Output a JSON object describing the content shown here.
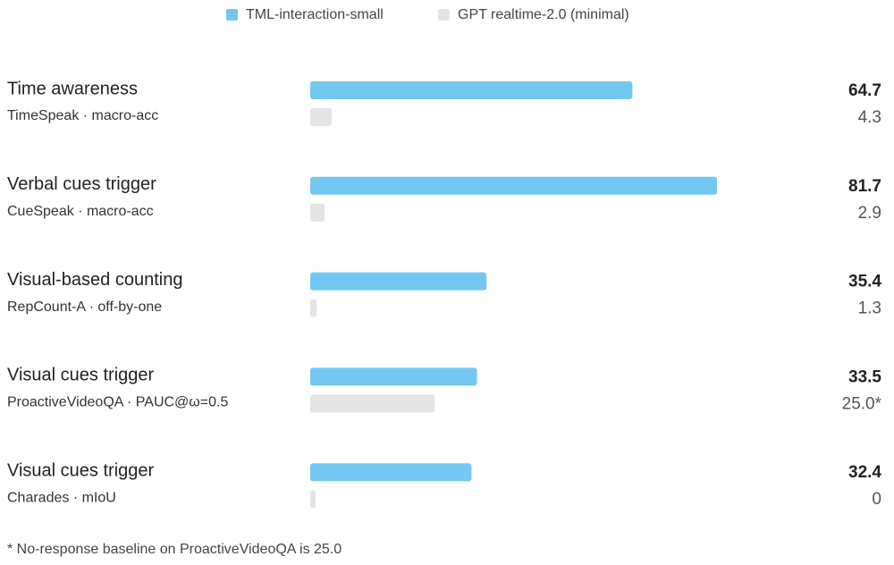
{
  "chart_data": {
    "type": "bar",
    "orientation": "horizontal",
    "categories": [
      "Time awareness",
      "Verbal cues trigger",
      "Visual-based counting",
      "Visual cues trigger",
      "Visual cues trigger"
    ],
    "category_subtitles": [
      "TimeSpeak · macro-acc",
      "CueSpeak · macro-acc",
      "RepCount-A · off-by-one",
      "ProactiveVideoQA · PAUC@ω=0.5",
      "Charades · mIoU"
    ],
    "series": [
      {
        "name": "TML-interaction-small",
        "color": "#73c8f1",
        "values": [
          64.7,
          81.7,
          35.4,
          33.5,
          32.4
        ]
      },
      {
        "name": "GPT realtime-2.0 (minimal)",
        "color": "#e4e4e4",
        "values": [
          4.3,
          2.9,
          1.3,
          25.0,
          0
        ],
        "value_labels": [
          "4.3",
          "2.9",
          "1.3",
          "25.0*",
          "0"
        ]
      }
    ],
    "footnote": "* No-response baseline on ProactiveVideoQA is 25.0"
  }
}
